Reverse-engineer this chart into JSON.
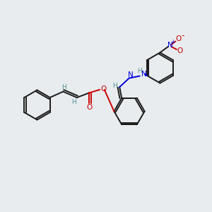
{
  "background_color": "#e8ecef",
  "bond_color": "#1a1a1a",
  "h_color": "#4a9090",
  "n_color": "#0000dd",
  "o_color": "#cc0000",
  "figsize": [
    3.0,
    3.0
  ],
  "dpi": 100,
  "xlim": [
    0,
    10
  ],
  "ylim": [
    0,
    10
  ]
}
